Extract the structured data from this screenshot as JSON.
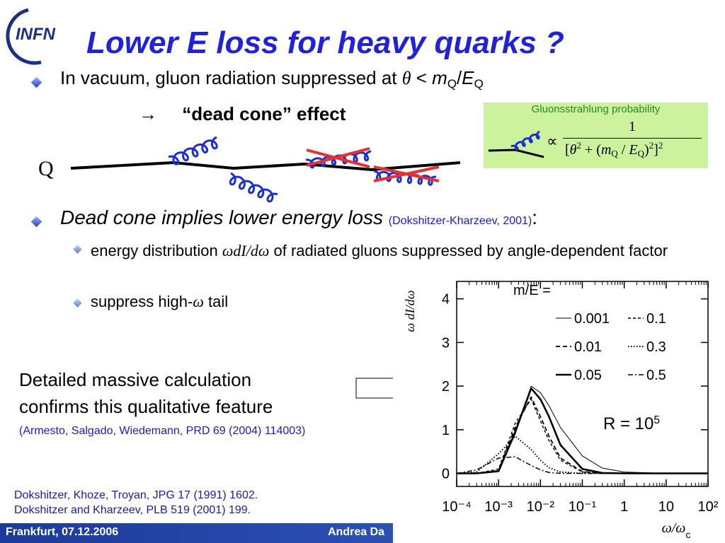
{
  "logo": "INFN",
  "title": "Lower E loss for heavy quarks ?",
  "bullet1": [
    {
      "text": "In vacuum, gluon radiation suppressed at ",
      "style": "normal"
    },
    {
      "text": "θ",
      "style": "sym"
    },
    {
      "text": " < ",
      "style": "normal"
    },
    {
      "text": "m",
      "style": "italic"
    },
    {
      "text": "Q",
      "style": "sub"
    },
    {
      "text": "/",
      "style": "normal"
    },
    {
      "text": "E",
      "style": "italic"
    },
    {
      "text": "Q",
      "style": "sub"
    }
  ],
  "dead_cone": {
    "arrow": "→",
    "text": "“dead cone” effect"
  },
  "inset": {
    "title": "Gluonsstrahlung probability",
    "proportional": "∝",
    "numerator": "1",
    "denominator": [
      {
        "text": "[",
        "style": "normal"
      },
      {
        "text": "θ",
        "style": "sym"
      },
      {
        "text": "2",
        "style": "sup"
      },
      {
        "text": " + (",
        "style": "normal"
      },
      {
        "text": "m",
        "style": "sym"
      },
      {
        "text": "Q",
        "style": "sub"
      },
      {
        "text": " / ",
        "style": "normal"
      },
      {
        "text": "E",
        "style": "sym"
      },
      {
        "text": "Q",
        "style": "sub"
      },
      {
        "text": ")",
        "style": "normal"
      },
      {
        "text": "2",
        "style": "sup"
      },
      {
        "text": "]",
        "style": "normal"
      },
      {
        "text": "2",
        "style": "sup"
      }
    ]
  },
  "quark_label": "Q",
  "bullet2": [
    {
      "text": "Dead cone implies lower energy loss ",
      "style": "italic"
    },
    {
      "text": "(Dokshitzer-Kharzeev, 2001)",
      "style": "ref"
    },
    {
      "text": ":",
      "style": "normal"
    }
  ],
  "sub_bullets": [
    [
      {
        "text": "energy distribution ",
        "style": "normal"
      },
      {
        "text": "ωdI/dω",
        "style": "sym"
      },
      {
        "text": " of radiated gluons suppressed by angle-dependent factor",
        "style": "normal"
      }
    ],
    [
      {
        "text": "suppress high-",
        "style": "normal"
      },
      {
        "text": "ω",
        "style": "sym"
      },
      {
        "text": " tail",
        "style": "normal"
      }
    ]
  ],
  "callout": {
    "lines": [
      "Detailed massive calculation",
      "confirms this qualitative feature"
    ],
    "reference": "(Armesto, Salgado, Wiedemann, PRD 69 (2004) 114003)"
  },
  "references": [
    "Dokshitzer, Khoze, Troyan, JPG 17 (1991) 1602.",
    "Dokshitzer and Kharzeev, PLB 519 (2001) 199."
  ],
  "footer": {
    "place_date": "Frankfurt, 07.12.2006",
    "author": "Andrea Da"
  },
  "chart_data": {
    "type": "line",
    "ylabel": "ω dI/dω",
    "xlabel": [
      {
        "text": "ω/ω",
        "style": "sym"
      },
      {
        "text": "c",
        "style": "sub"
      }
    ],
    "legend_title": "m/E =",
    "annotation": [
      {
        "text": "R = 10",
        "style": "normal"
      },
      {
        "text": "5",
        "style": "sup"
      }
    ],
    "xlog": true,
    "xlim": [
      0.0001,
      100
    ],
    "ylim": [
      -0.3,
      4.4
    ],
    "xticks": [
      {
        "value": 0.0001,
        "label": "10⁻⁴"
      },
      {
        "value": 0.001,
        "label": "10⁻³"
      },
      {
        "value": 0.01,
        "label": "10⁻²"
      },
      {
        "value": 0.1,
        "label": "10⁻¹"
      },
      1,
      10,
      {
        "value": 100,
        "label": "10²"
      }
    ],
    "yticks": [
      0,
      1,
      2,
      3,
      4
    ],
    "x": [
      0.0001,
      0.0003,
      0.001,
      0.0025,
      0.006,
      0.01,
      0.016,
      0.03,
      0.1,
      0.3,
      1,
      10,
      100
    ],
    "series": [
      {
        "name": "0.001",
        "color": "#000000",
        "line_style": "thin",
        "values": [
          0,
          0,
          0.05,
          0.9,
          2.0,
          1.85,
          1.55,
          1.05,
          0.4,
          0.12,
          0.03,
          0,
          0
        ]
      },
      {
        "name": "0.01",
        "color": "#000000",
        "line_style": "dashed",
        "values": [
          0,
          0,
          0.06,
          1.05,
          1.75,
          1.3,
          0.85,
          0.35,
          0.04,
          0,
          0,
          0,
          0
        ]
      },
      {
        "name": "0.05",
        "color": "#000000",
        "line_style": "thick",
        "values": [
          0,
          0,
          0.05,
          0.95,
          1.95,
          1.7,
          1.3,
          0.65,
          0.1,
          0.01,
          0,
          0,
          0
        ]
      },
      {
        "name": "0.1",
        "color": "#000000",
        "line_style": "dash",
        "values": [
          0,
          0,
          0.1,
          1.15,
          1.7,
          1.2,
          0.75,
          0.3,
          0.03,
          0,
          0,
          0,
          0
        ]
      },
      {
        "name": "0.3",
        "color": "#000000",
        "line_style": "dotted",
        "values": [
          0,
          0.03,
          0.45,
          0.85,
          0.55,
          0.3,
          0.13,
          0.03,
          0,
          0,
          0,
          0,
          0
        ]
      },
      {
        "name": "0.5",
        "color": "#000000",
        "line_style": "dashdot",
        "values": [
          0,
          0.08,
          0.35,
          0.38,
          0.18,
          0.08,
          0.02,
          0,
          0,
          0,
          0,
          0,
          0
        ]
      }
    ]
  }
}
